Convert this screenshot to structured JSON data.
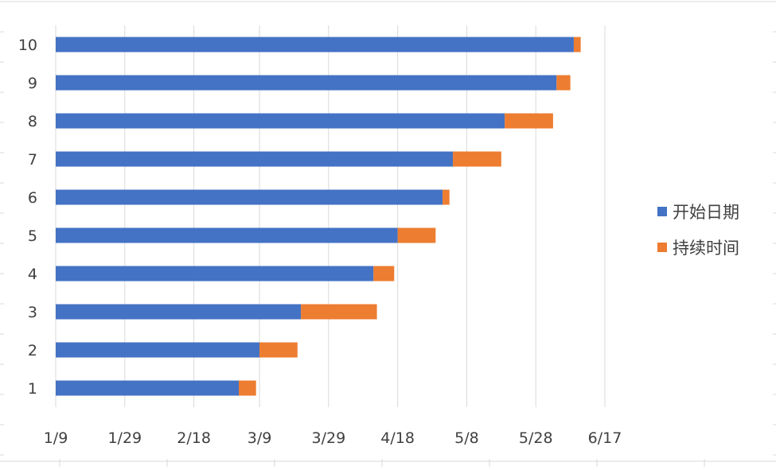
{
  "chart_data": {
    "type": "bar",
    "orientation": "horizontal",
    "stacked": true,
    "title": "",
    "xlabel": "",
    "ylabel": "",
    "categories": [
      "1",
      "2",
      "3",
      "4",
      "5",
      "6",
      "7",
      "8",
      "9",
      "10"
    ],
    "x_ticks": [
      "1/9",
      "1/29",
      "2/18",
      "3/9",
      "3/29",
      "4/18",
      "5/8",
      "5/28",
      "6/17"
    ],
    "x_tick_dates": [
      "2019-01-09",
      "2019-01-29",
      "2019-02-18",
      "2019-03-09",
      "2019-03-29",
      "2019-04-18",
      "2019-05-08",
      "2019-05-28",
      "2019-06-17"
    ],
    "xlim": [
      "2019-01-09",
      "2019-06-17"
    ],
    "grid": "vertical",
    "legend_position": "right",
    "series": [
      {
        "name": "开始日期",
        "color": "#4472c4",
        "values": [
          "2019-03-03",
          "2019-03-09",
          "2019-03-21",
          "2019-04-11",
          "2019-04-18",
          "2019-05-01",
          "2019-05-04",
          "2019-05-19",
          "2019-06-03",
          "2019-06-08"
        ]
      },
      {
        "name": "持续时间",
        "color": "#ed7d31",
        "unit": "days",
        "values": [
          5,
          11,
          22,
          6,
          11,
          2,
          14,
          14,
          4,
          2
        ]
      }
    ]
  }
}
